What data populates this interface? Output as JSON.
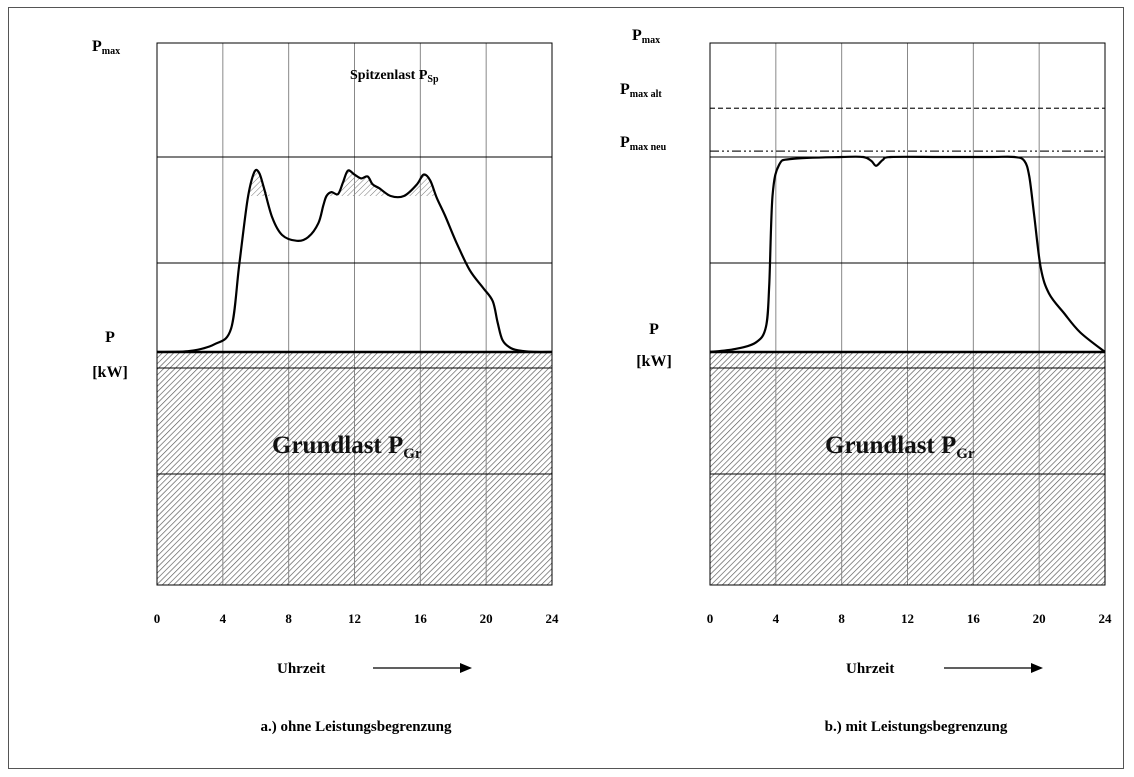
{
  "chart_data": [
    {
      "type": "area",
      "caption": "a.) ohne Leistungsbegrenzung",
      "xlabel": "Uhrzeit",
      "xticks": [
        "0",
        "4",
        "8",
        "12",
        "16",
        "20",
        "24"
      ],
      "xlim": [
        0,
        24
      ],
      "grid": true,
      "labels": {
        "pmax_main": "P",
        "pmax_sub": "max",
        "p_unit_line1": "P",
        "p_unit_line2": "[kW]",
        "peak_main": "Spitzenlast P",
        "peak_sub": "Sp",
        "base_main": "Grundlast P",
        "base_sub": "Gr"
      },
      "series": [
        {
          "x": [
            0,
            2,
            3.5,
            4.5,
            5.0,
            5.5,
            5.9,
            6.2,
            6.5,
            7.0,
            7.6,
            8.5,
            9.2,
            9.8,
            10.1,
            10.3,
            10.6,
            11.0,
            11.3,
            11.6,
            12.0,
            12.4,
            12.8,
            13.1,
            13.5,
            14.2,
            15.0,
            15.8,
            16.2,
            16.6,
            17.0,
            17.5,
            18.2,
            19.0,
            19.8,
            20.4,
            20.7,
            21.0,
            21.5,
            22.2,
            23.0,
            24.0
          ],
          "y": [
            0.0,
            0.05,
            0.4,
            1.2,
            4.5,
            7.8,
            9.2,
            9.2,
            8.4,
            6.9,
            6.0,
            5.7,
            5.9,
            6.6,
            7.5,
            8.0,
            8.2,
            8.1,
            8.7,
            9.3,
            9.1,
            8.9,
            9.0,
            8.6,
            8.4,
            8.0,
            8.0,
            8.6,
            9.1,
            8.8,
            7.9,
            7.0,
            5.6,
            4.2,
            3.3,
            2.6,
            1.5,
            0.6,
            0.2,
            0.05,
            0.0,
            0.0
          ]
        }
      ]
    },
    {
      "type": "area",
      "caption": "b.) mit Leistungsbegrenzung",
      "xlabel": "Uhrzeit",
      "xticks": [
        "0",
        "4",
        "8",
        "12",
        "16",
        "20",
        "24"
      ],
      "xlim": [
        0,
        24
      ],
      "grid": true,
      "labels": {
        "pmax_main": "P",
        "pmax_sub": "max",
        "pmax_alt_main": "P",
        "pmax_alt_sub": "max alt",
        "pmax_neu_main": "P",
        "pmax_neu_sub": "max neu",
        "p_unit_line1": "P",
        "p_unit_line2": "[kW]",
        "base_main": "Grundlast P",
        "base_sub": "Gr"
      },
      "reference_lines": {
        "pmax_alt": 12.5,
        "pmax_neu": 10.3
      },
      "series": [
        {
          "x": [
            0,
            1.5,
            2.8,
            3.4,
            3.6,
            3.8,
            4.2,
            5.0,
            8.0,
            9.3,
            9.8,
            10.1,
            10.5,
            11.0,
            14.0,
            17.0,
            18.5,
            19.1,
            19.4,
            19.7,
            20.1,
            20.6,
            21.5,
            22.5,
            24.0
          ],
          "y": [
            0.0,
            0.15,
            0.5,
            1.3,
            3.5,
            8.0,
            9.6,
            9.9,
            10.0,
            10.0,
            9.8,
            9.55,
            9.85,
            10.0,
            10.0,
            10.0,
            10.0,
            9.8,
            9.0,
            7.0,
            4.3,
            3.0,
            2.0,
            1.0,
            0.0
          ]
        }
      ]
    }
  ]
}
